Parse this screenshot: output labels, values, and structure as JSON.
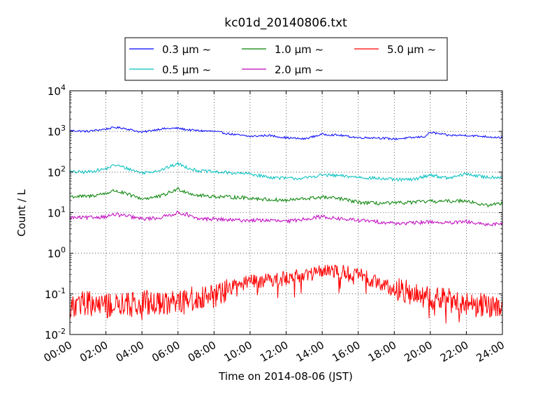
{
  "chart_data": {
    "type": "line",
    "title": "kc01d_20140806.txt",
    "xlabel": "Time on 2014-08-06 (JST)",
    "ylabel": "Count / L",
    "x_unit": "hours",
    "xlim": [
      0,
      24
    ],
    "ylim": [
      0.01,
      10000
    ],
    "yscale": "log",
    "grid": true,
    "legend_position": "top-center",
    "x_tick_values": [
      0,
      2,
      4,
      6,
      8,
      10,
      12,
      14,
      16,
      18,
      20,
      22,
      24
    ],
    "x_tick_labels": [
      "00:00",
      "02:00",
      "04:00",
      "06:00",
      "08:00",
      "10:00",
      "12:00",
      "14:00",
      "16:00",
      "18:00",
      "20:00",
      "22:00",
      "24:00"
    ],
    "y_tick_values": [
      0.01,
      0.1,
      1,
      10,
      100,
      1000,
      10000
    ],
    "y_tick_mantissa": [
      "10",
      "10",
      "10",
      "10",
      "10",
      "10",
      "10"
    ],
    "y_tick_exponents": [
      "-2",
      "-1",
      "0",
      "1",
      "2",
      "3",
      "4"
    ],
    "series": [
      {
        "name": "0.3 μm ~",
        "color": "#0000ff",
        "x": [
          0,
          1,
          2,
          2.5,
          3,
          4,
          5,
          6,
          6.5,
          7,
          8,
          9,
          10,
          11,
          12,
          13,
          14,
          15,
          16,
          17,
          18,
          19,
          19.7,
          20,
          21,
          22,
          23,
          24
        ],
        "y": [
          1050,
          1000,
          1150,
          1250,
          1200,
          950,
          1150,
          1200,
          1100,
          1050,
          1000,
          850,
          750,
          800,
          700,
          650,
          850,
          800,
          700,
          700,
          650,
          700,
          750,
          950,
          800,
          800,
          750,
          700
        ]
      },
      {
        "name": "0.5 μm ~",
        "color": "#00bfbf",
        "x": [
          0,
          1,
          2,
          2.5,
          3,
          4,
          5,
          6,
          6.5,
          7,
          8,
          9,
          10,
          11,
          12,
          13,
          14,
          15,
          16,
          17,
          18,
          19,
          20,
          21,
          22,
          23,
          24
        ],
        "y": [
          100,
          100,
          120,
          150,
          130,
          95,
          110,
          160,
          130,
          110,
          100,
          95,
          90,
          75,
          70,
          70,
          85,
          80,
          75,
          70,
          65,
          65,
          85,
          70,
          90,
          75,
          75
        ]
      },
      {
        "name": "1.0 μm ~",
        "color": "#008000",
        "x": [
          0,
          1,
          2,
          2.5,
          3,
          4,
          5,
          6,
          6.5,
          7,
          8,
          9,
          10,
          11,
          12,
          13,
          14,
          15,
          16,
          17,
          18,
          19,
          20,
          21,
          22,
          23,
          24
        ],
        "y": [
          25,
          25,
          30,
          35,
          30,
          22,
          25,
          38,
          32,
          27,
          25,
          24,
          23,
          21,
          20,
          22,
          24,
          22,
          18,
          17,
          17,
          18,
          19,
          19,
          20,
          15,
          17
        ]
      },
      {
        "name": "2.0 μm ~",
        "color": "#bf00bf",
        "x": [
          0,
          1,
          2,
          2.5,
          3,
          4,
          5,
          6,
          6.5,
          7,
          8,
          9,
          10,
          11,
          12,
          13,
          14,
          15,
          16,
          17,
          18,
          19,
          20,
          21,
          22,
          23,
          24
        ],
        "y": [
          7.5,
          7.5,
          8,
          9,
          8.5,
          7,
          7.5,
          10,
          9,
          7,
          7,
          6.5,
          6.5,
          6.5,
          6,
          7,
          8,
          7,
          6.5,
          6,
          5.5,
          5.5,
          6,
          5.5,
          6,
          5,
          5.5
        ]
      },
      {
        "name": "5.0 μm ~",
        "color": "#ff0000",
        "x": [
          0,
          1,
          2,
          3,
          4,
          5,
          6,
          7,
          8,
          8.5,
          9,
          10,
          11,
          12,
          13,
          14,
          15,
          16,
          16.5,
          17,
          18,
          19,
          20,
          21,
          22,
          23,
          24
        ],
        "y": [
          0.05,
          0.06,
          0.05,
          0.05,
          0.06,
          0.06,
          0.07,
          0.08,
          0.09,
          0.1,
          0.15,
          0.2,
          0.22,
          0.25,
          0.3,
          0.35,
          0.35,
          0.3,
          0.25,
          0.2,
          0.13,
          0.1,
          0.08,
          0.07,
          0.06,
          0.05,
          0.05
        ]
      }
    ]
  }
}
